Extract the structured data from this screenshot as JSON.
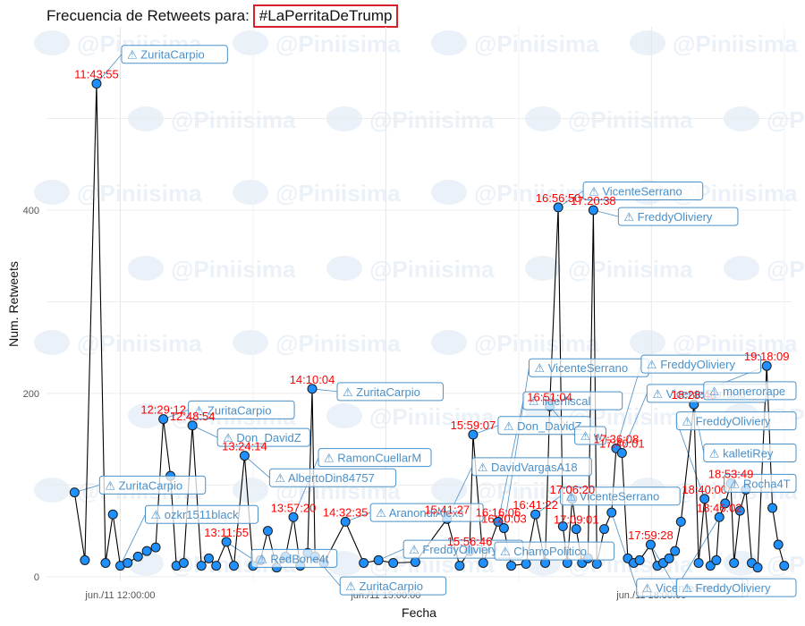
{
  "title": {
    "prefix": "Frecuencia de Retweets para:",
    "hashtag": "#LaPerritaDeTrump"
  },
  "watermark": "@Piniisima",
  "colors": {
    "point": "#1e90ff",
    "line": "#000000",
    "timestamp": "#ff0000",
    "label": "#4a90c8",
    "frame": "#d6202a"
  },
  "chart_data": {
    "type": "line",
    "xlabel": "Fecha",
    "ylabel": "Num. Retweets",
    "xlim": [
      "11:10:00",
      "19:35:00"
    ],
    "ylim": [
      -5,
      600
    ],
    "x_ticks": [
      {
        "t": "12:00:00",
        "label": "jun./11 12:00:00"
      },
      {
        "t": "15:00:00",
        "label": "jun./11 15:00:00"
      },
      {
        "t": "18:00:00",
        "label": "jun./11 18:00:00"
      }
    ],
    "y_ticks": [
      0,
      200,
      400
    ],
    "grid": true,
    "series": [
      {
        "points": [
          {
            "t": "11:29:00",
            "y": 92
          },
          {
            "t": "11:36:00",
            "y": 18
          },
          {
            "t": "11:43:55",
            "y": 538
          },
          {
            "t": "11:50:00",
            "y": 15
          },
          {
            "t": "11:55:00",
            "y": 68
          },
          {
            "t": "12:00:00",
            "y": 12
          },
          {
            "t": "12:05:00",
            "y": 15
          },
          {
            "t": "12:12:00",
            "y": 22
          },
          {
            "t": "12:18:00",
            "y": 28
          },
          {
            "t": "12:24:00",
            "y": 32
          },
          {
            "t": "12:29:12",
            "y": 172
          },
          {
            "t": "12:34:00",
            "y": 110
          },
          {
            "t": "12:38:00",
            "y": 12
          },
          {
            "t": "12:43:00",
            "y": 15
          },
          {
            "t": "12:48:54",
            "y": 165
          },
          {
            "t": "12:55:00",
            "y": 12
          },
          {
            "t": "13:00:00",
            "y": 20
          },
          {
            "t": "13:05:00",
            "y": 12
          },
          {
            "t": "13:11:55",
            "y": 38
          },
          {
            "t": "13:17:00",
            "y": 12
          },
          {
            "t": "13:24:14",
            "y": 132
          },
          {
            "t": "13:30:00",
            "y": 12
          },
          {
            "t": "13:35:00",
            "y": 18
          },
          {
            "t": "13:40:00",
            "y": 50
          },
          {
            "t": "13:46:00",
            "y": 10
          },
          {
            "t": "13:52:00",
            "y": 22
          },
          {
            "t": "13:57:20",
            "y": 65
          },
          {
            "t": "14:02:00",
            "y": 12
          },
          {
            "t": "14:07:00",
            "y": 26
          },
          {
            "t": "14:10:04",
            "y": 205
          },
          {
            "t": "14:12:00",
            "y": 22
          },
          {
            "t": "14:18:00",
            "y": 15
          },
          {
            "t": "14:32:35",
            "y": 60
          },
          {
            "t": "14:45:00",
            "y": 15
          },
          {
            "t": "14:55:00",
            "y": 18
          },
          {
            "t": "15:05:00",
            "y": 15
          },
          {
            "t": "15:20:00",
            "y": 16
          },
          {
            "t": "15:41:27",
            "y": 63
          },
          {
            "t": "15:50:00",
            "y": 12
          },
          {
            "t": "15:56:46",
            "y": 28
          },
          {
            "t": "15:59:07",
            "y": 155
          },
          {
            "t": "16:06:00",
            "y": 15
          },
          {
            "t": "16:16:06",
            "y": 60
          },
          {
            "t": "16:20:03",
            "y": 53
          },
          {
            "t": "16:25:00",
            "y": 12
          },
          {
            "t": "16:35:00",
            "y": 14
          },
          {
            "t": "16:41:22",
            "y": 68
          },
          {
            "t": "16:48:00",
            "y": 15
          },
          {
            "t": "16:51:04",
            "y": 186
          },
          {
            "t": "16:56:50",
            "y": 403
          },
          {
            "t": "17:00:00",
            "y": 55
          },
          {
            "t": "17:03:00",
            "y": 15
          },
          {
            "t": "17:06:20",
            "y": 85
          },
          {
            "t": "17:09:01",
            "y": 52
          },
          {
            "t": "17:13:00",
            "y": 15
          },
          {
            "t": "17:17:00",
            "y": 20
          },
          {
            "t": "17:20:38",
            "y": 400
          },
          {
            "t": "17:23:00",
            "y": 14
          },
          {
            "t": "17:28:00",
            "y": 52
          },
          {
            "t": "17:33:00",
            "y": 70
          },
          {
            "t": "17:36:08",
            "y": 140
          },
          {
            "t": "17:40:01",
            "y": 135
          },
          {
            "t": "17:44:00",
            "y": 20
          },
          {
            "t": "17:48:00",
            "y": 15
          },
          {
            "t": "17:52:00",
            "y": 18
          },
          {
            "t": "17:59:28",
            "y": 35
          },
          {
            "t": "18:04:00",
            "y": 12
          },
          {
            "t": "18:08:00",
            "y": 15
          },
          {
            "t": "18:12:00",
            "y": 20
          },
          {
            "t": "18:16:00",
            "y": 28
          },
          {
            "t": "18:20:00",
            "y": 60
          },
          {
            "t": "18:28:48",
            "y": 188
          },
          {
            "t": "18:32:00",
            "y": 15
          },
          {
            "t": "18:36:00",
            "y": 85
          },
          {
            "t": "18:40:00",
            "y": 12
          },
          {
            "t": "18:44:00",
            "y": 18
          },
          {
            "t": "18:46:02",
            "y": 65
          },
          {
            "t": "18:50:00",
            "y": 80
          },
          {
            "t": "18:53:49",
            "y": 102
          },
          {
            "t": "18:56:00",
            "y": 15
          },
          {
            "t": "19:00:00",
            "y": 72
          },
          {
            "t": "19:04:00",
            "y": 95
          },
          {
            "t": "19:08:00",
            "y": 15
          },
          {
            "t": "19:12:00",
            "y": 10
          },
          {
            "t": "19:18:09",
            "y": 230
          },
          {
            "t": "19:22:00",
            "y": 75
          },
          {
            "t": "19:26:00",
            "y": 35
          },
          {
            "t": "19:30:00",
            "y": 12
          }
        ]
      }
    ],
    "annotations": [
      {
        "t": "11:43:55",
        "y": 538,
        "time": "11:43:55",
        "user": "ZuritaCarpio",
        "ly": 570
      },
      {
        "t": "11:29:00",
        "y": 92,
        "user": "ZuritaCarpio",
        "ly": 100
      },
      {
        "t": "12:29:12",
        "y": 172,
        "time": "12:29:12",
        "user": "ZuritaCarpio",
        "ly": 182
      },
      {
        "t": "12:48:54",
        "y": 165,
        "time": "12:48:54",
        "user": "Don_DavidZ",
        "ly": 152
      },
      {
        "t": "13:24:14",
        "y": 132,
        "time": "13:24:14",
        "user": "AlbertoDin84757",
        "ly": 108
      },
      {
        "t": "12:00:00",
        "y": 12,
        "user": "ozkr1511black",
        "ly": 68
      },
      {
        "t": "13:11:55",
        "y": 38,
        "time": "13:11:55",
        "user": "RedBone4t",
        "ly": 20
      },
      {
        "t": "14:10:04",
        "y": 205,
        "time": "14:10:04",
        "user": "ZuritaCarpio",
        "ly": 202
      },
      {
        "t": "13:57:20",
        "y": 65,
        "time": "13:57:20",
        "user": "RamonCuellarM",
        "ly": 130
      },
      {
        "t": "14:32:35",
        "y": 60,
        "time": "14:32:35",
        "user": "AranondiAlexs",
        "ly": 70
      },
      {
        "t": "14:12:00",
        "y": 22,
        "user": "ZuritaCarpio",
        "ly": -10
      },
      {
        "t": "14:55:00",
        "y": 18,
        "user": "FreddyOliviery",
        "ly": 30
      },
      {
        "t": "15:59:07",
        "y": 155,
        "time": "15:59:07",
        "user": "Don_DavidZ",
        "ly": 165
      },
      {
        "t": "15:41:27",
        "y": 63,
        "time": "15:41:27",
        "user": "DavidVargasA18",
        "ly": 120
      },
      {
        "t": "15:56:46",
        "y": 28,
        "time": "15:56:46",
        "user": "CharroPolitico",
        "ly": 28
      },
      {
        "t": "16:16:06",
        "y": 60,
        "time": "16:16:06",
        "user": "liderfiscal",
        "ly": 192
      },
      {
        "t": "16:20:03",
        "y": 53,
        "time": "16:20:03",
        "user": "VicenteSerrano",
        "ly": 228
      },
      {
        "t": "16:56:50",
        "y": 403,
        "time": "16:56:50",
        "user": "VicenteSerrano",
        "ly": 421
      },
      {
        "t": "17:20:38",
        "y": 400,
        "time": "17:20:38",
        "user": "FreddyOliviery",
        "ly": 393
      },
      {
        "t": "16:51:04",
        "y": 186,
        "time": "16:51:04",
        "user": "w",
        "ly": 154
      },
      {
        "t": "16:41:22",
        "y": 68,
        "time": "16:41:22",
        "user": "VicenteSerrano",
        "ly": 88
      },
      {
        "t": "17:06:20",
        "y": 85,
        "time": "17:06:20"
      },
      {
        "t": "17:09:01",
        "y": 52,
        "time": "17:09:01"
      },
      {
        "t": "17:36:08",
        "y": 140,
        "time": "17:36:08",
        "user": "FreddyOliviery",
        "ly": 232
      },
      {
        "t": "17:40:01",
        "y": 135,
        "time": "17:40:01",
        "user": "VicenteSerrano",
        "ly": 200
      },
      {
        "t": "17:59:28",
        "y": 35,
        "time": "17:59:28",
        "user": "Rocha4T",
        "ly": -12
      },
      {
        "t": "17:33:00",
        "y": 70,
        "user": "VicenteSerra",
        "ly": -12
      },
      {
        "t": "18:28:48",
        "y": 188,
        "time": "18:28:48",
        "user": "kalletiRey",
        "ly": 135
      },
      {
        "t": "18:36:00",
        "y": 85,
        "time": "18:40:00",
        "user": "FreddyOliviery",
        "ly": 170
      },
      {
        "t": "19:18:09",
        "y": 230,
        "time": "19:18:09",
        "user": "monerorape",
        "ly": 203
      },
      {
        "t": "18:53:49",
        "y": 102,
        "time": "18:53:49",
        "user": "Rocha4T",
        "ly": 102
      },
      {
        "t": "18:46:02",
        "y": 65,
        "time": "18:46:02",
        "user": "FreddyOliviery",
        "ly": -12
      }
    ]
  }
}
